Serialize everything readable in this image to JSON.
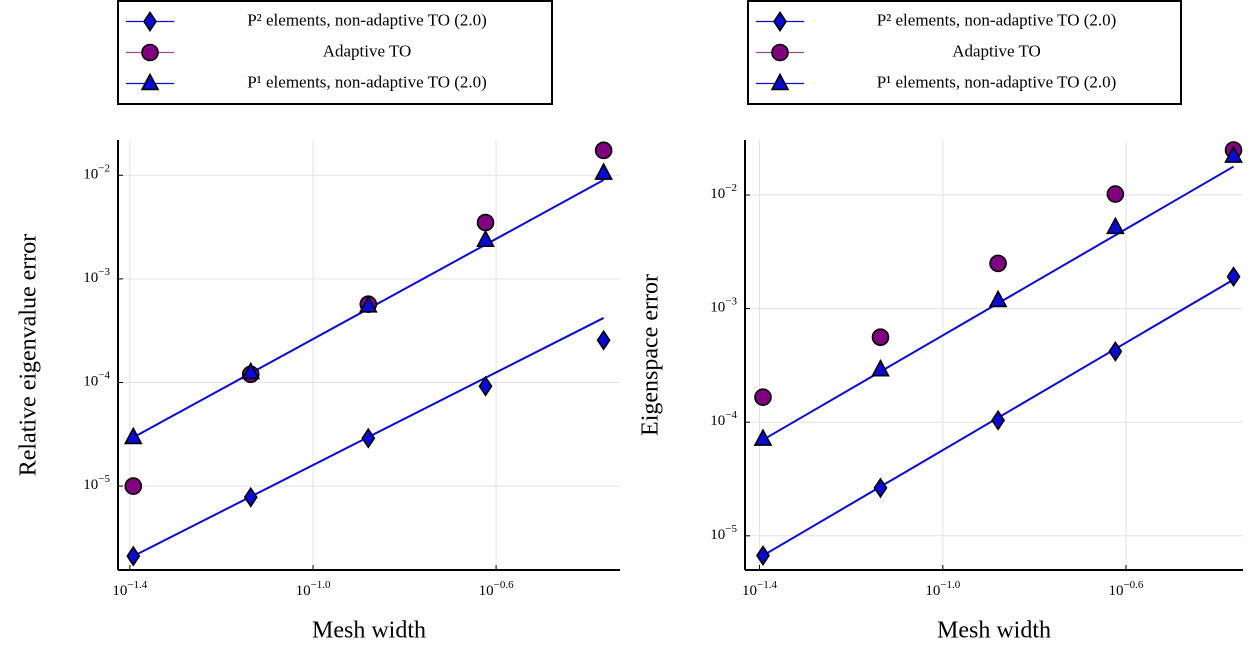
{
  "chart_data": [
    {
      "type": "scatter",
      "log": true,
      "grid": true,
      "legend": "top",
      "xlabel": "Mesh width",
      "ylabel": "Relative eigenvalue error",
      "x": [
        0.0405,
        0.0731,
        0.132,
        0.238,
        0.431
      ],
      "xlim": [
        0.0375,
        0.468
      ],
      "ylim": [
        1.55e-06,
        0.0219
      ],
      "xticks": [
        {
          "value": 0.0398,
          "label": "10^−1.4"
        },
        {
          "value": 0.1,
          "label": "10^−1.0"
        },
        {
          "value": 0.251,
          "label": "10^−0.6"
        }
      ],
      "yticks": [
        {
          "value": 1e-05,
          "label": "10^−5"
        },
        {
          "value": 0.0001,
          "label": "10^−4"
        },
        {
          "value": 0.001,
          "label": "10^−3"
        },
        {
          "value": 0.01,
          "label": "10^−2"
        }
      ],
      "series": [
        {
          "name": "P² elements, non-adaptive TO (2.0)",
          "color": "#0a0ad6",
          "marker": "diamond",
          "values": [
            2.11e-06,
            7.8e-06,
            2.9e-05,
            9.2e-05,
            0.000256
          ],
          "fit": [
            2.11e-06,
            0.00042
          ]
        },
        {
          "name": "Adaptive TO",
          "color": "#800080",
          "marker": "circle",
          "values": [
            1e-05,
            0.00012,
            0.00057,
            0.0035,
            0.0174
          ]
        },
        {
          "name": "P¹ elements, non-adaptive TO (2.0)",
          "color": "#0a0ad6",
          "marker": "triangle",
          "values": [
            2.95e-05,
            0.000125,
            0.00055,
            0.00236,
            0.0105
          ],
          "fit": [
            2.95e-05,
            0.009
          ]
        }
      ]
    },
    {
      "type": "scatter",
      "log": true,
      "grid": true,
      "legend": "top",
      "xlabel": "Mesh width",
      "ylabel": "Eigenspace error",
      "x": [
        0.0405,
        0.0731,
        0.132,
        0.238,
        0.431
      ],
      "xlim": [
        0.037,
        0.452
      ],
      "ylim": [
        5e-06,
        0.0305
      ],
      "xticks": [
        {
          "value": 0.0398,
          "label": "10^−1.4"
        },
        {
          "value": 0.1,
          "label": "10^−1.0"
        },
        {
          "value": 0.251,
          "label": "10^−0.6"
        }
      ],
      "yticks": [
        {
          "value": 1e-05,
          "label": "10^−5"
        },
        {
          "value": 0.0001,
          "label": "10^−4"
        },
        {
          "value": 0.001,
          "label": "10^−3"
        },
        {
          "value": 0.01,
          "label": "10^−2"
        }
      ],
      "series": [
        {
          "name": "P² elements, non-adaptive TO (2.0)",
          "color": "#0a0ad6",
          "marker": "diamond",
          "values": [
            6.7e-06,
            2.64e-05,
            0.000104,
            0.00042,
            0.00191
          ],
          "fit": [
            6.7e-06,
            0.0018
          ]
        },
        {
          "name": "Adaptive TO",
          "color": "#800080",
          "marker": "circle",
          "values": [
            0.000166,
            0.00056,
            0.0025,
            0.0102,
            0.0249
          ]
        },
        {
          "name": "P¹ elements, non-adaptive TO (2.0)",
          "color": "#0a0ad6",
          "marker": "triangle",
          "values": [
            7.1e-05,
            0.00029,
            0.00118,
            0.0052,
            0.022
          ],
          "fit": [
            7e-05,
            0.0178
          ]
        }
      ]
    }
  ]
}
